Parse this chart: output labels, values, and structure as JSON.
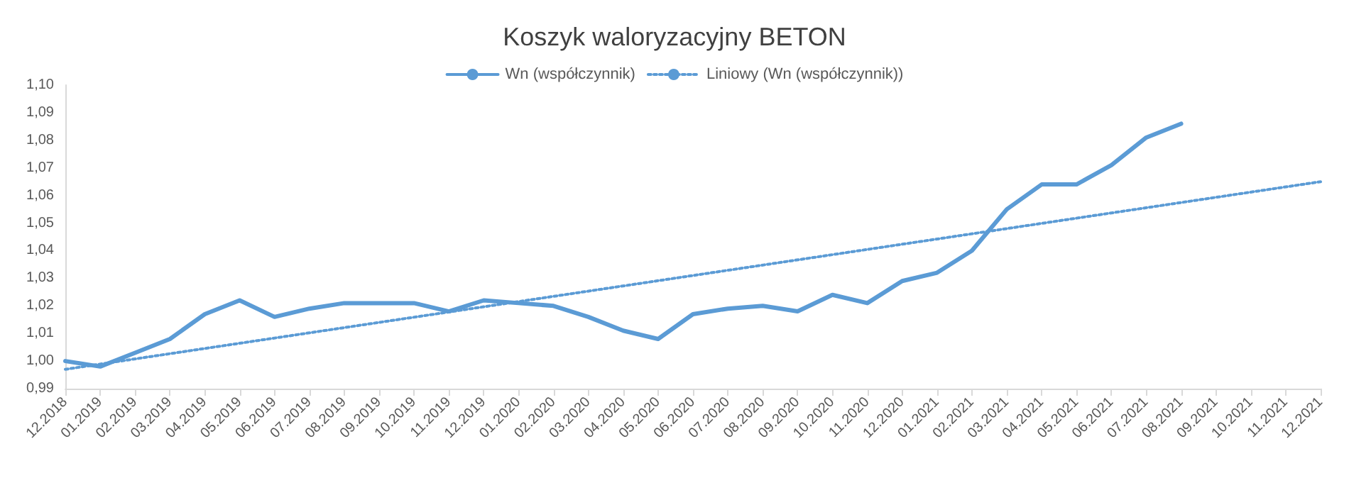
{
  "chart_data": {
    "type": "line",
    "title": "Koszyk waloryzacyjny BETON",
    "categories": [
      "12.2018",
      "01.2019",
      "02.2019",
      "03.2019",
      "04.2019",
      "05.2019",
      "06.2019",
      "07.2019",
      "08.2019",
      "09.2019",
      "10.2019",
      "11.2019",
      "12.2019",
      "01.2020",
      "02.2020",
      "03.2020",
      "04.2020",
      "05.2020",
      "06.2020",
      "07.2020",
      "08.2020",
      "09.2020",
      "10.2020",
      "11.2020",
      "12.2020",
      "01.2021",
      "02.2021",
      "03.2021",
      "04.2021",
      "05.2021",
      "06.2021",
      "07.2021",
      "08.2021",
      "09.2021",
      "10.2021",
      "11.2021",
      "12.2021"
    ],
    "series": [
      {
        "name": "Wn (współczynnik)",
        "color": "#5b9bd5",
        "line_style": "solid",
        "values": [
          1.0,
          0.998,
          1.003,
          1.008,
          1.017,
          1.022,
          1.016,
          1.019,
          1.021,
          1.021,
          1.021,
          1.018,
          1.022,
          1.021,
          1.02,
          1.016,
          1.011,
          1.008,
          1.017,
          1.019,
          1.02,
          1.018,
          1.024,
          1.021,
          1.029,
          1.032,
          1.04,
          1.055,
          1.064,
          1.064,
          1.071,
          1.081,
          1.086,
          null,
          null,
          null,
          null
        ]
      },
      {
        "name": "Liniowy (Wn (współczynnik))",
        "type": "line",
        "color": "#5b9bd5",
        "line_style": "dotted",
        "x": [
          "12.2018",
          "12.2021"
        ],
        "values": [
          0.997,
          1.065
        ]
      }
    ],
    "ylim": [
      0.99,
      1.1
    ],
    "yticks": [
      {
        "value": 0.99,
        "label": "0,99"
      },
      {
        "value": 1.0,
        "label": "1,00"
      },
      {
        "value": 1.01,
        "label": "1,01"
      },
      {
        "value": 1.02,
        "label": "1,02"
      },
      {
        "value": 1.03,
        "label": "1,03"
      },
      {
        "value": 1.04,
        "label": "1,04"
      },
      {
        "value": 1.05,
        "label": "1,05"
      },
      {
        "value": 1.06,
        "label": "1,06"
      },
      {
        "value": 1.07,
        "label": "1,07"
      },
      {
        "value": 1.08,
        "label": "1,08"
      },
      {
        "value": 1.09,
        "label": "1,09"
      },
      {
        "value": 1.1,
        "label": "1,10"
      }
    ],
    "grid": false,
    "legend": "top",
    "marker": "none"
  }
}
